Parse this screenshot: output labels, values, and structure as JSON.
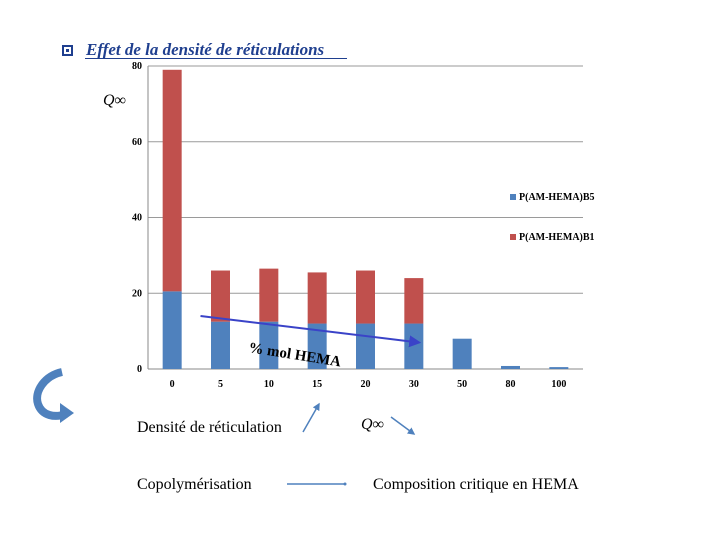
{
  "slide": {
    "title": "Effet de la densité  de réticulations",
    "q_label": "Q∞",
    "density_label": "Densité de réticulation",
    "q_label_2": "Q∞",
    "copolymerisation_label": "Copolymérisation",
    "composition_label": "Composition critique en HEMA",
    "annotation": "% mol HEMA"
  },
  "colors": {
    "series_b5": "#4f81bd",
    "series_b1": "#c0504d",
    "title": "#1f3f8f",
    "arrow": "#3a43c8",
    "curved_arrow": "#4f81bd"
  },
  "icons": [
    "curved-arrow-icon",
    "up-arrow-icon",
    "down-arrow-icon",
    "connector-line-icon",
    "bullet-square-icon"
  ],
  "chart_data": {
    "type": "bar",
    "stacked": true,
    "categories": [
      "0",
      "5",
      "10",
      "15",
      "20",
      "30",
      "50",
      "80",
      "100"
    ],
    "series": [
      {
        "name": "P(AM-HEMA)B5",
        "values": [
          20.5,
          12.5,
          12.5,
          12,
          12,
          12,
          8,
          0.8,
          0.5
        ]
      },
      {
        "name": "P(AM-HEMA)B1",
        "values": [
          58.5,
          13.5,
          14,
          13.5,
          14,
          12,
          0,
          0,
          0
        ]
      }
    ],
    "yticks": [
      "0",
      "20",
      "40",
      "60",
      "80"
    ],
    "ylim": [
      0,
      80
    ],
    "grid": true,
    "legend": "right",
    "trend_arrow": {
      "from": [
        5,
        14
      ],
      "to": [
        30,
        7
      ]
    }
  }
}
